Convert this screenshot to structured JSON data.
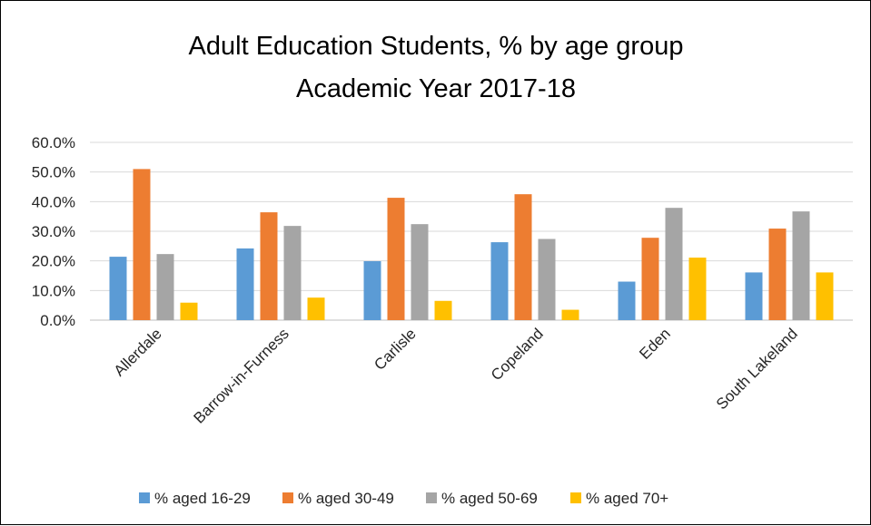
{
  "chart_data": {
    "type": "bar",
    "title": "Adult Education Students, % by age group",
    "subtitle": "Academic Year 2017-18",
    "xlabel": "",
    "ylabel": "",
    "ylim": [
      0,
      60
    ],
    "yticks": [
      "0.0%",
      "10.0%",
      "20.0%",
      "30.0%",
      "40.0%",
      "50.0%",
      "60.0%"
    ],
    "grid": true,
    "legend_position": "bottom",
    "categories": [
      "Allerdale",
      "Barrow-in-Furness",
      "Carlisle",
      "Copeland",
      "Eden",
      "South Lakeland"
    ],
    "series": [
      {
        "name": "% aged 16-29",
        "color": "#5b9bd5",
        "values": [
          21.4,
          24.2,
          19.9,
          26.3,
          13.0,
          16.1
        ]
      },
      {
        "name": "% aged 30-49",
        "color": "#ed7d31",
        "values": [
          51.0,
          36.4,
          41.3,
          42.5,
          27.8,
          30.9
        ]
      },
      {
        "name": "% aged 50-69",
        "color": "#a5a5a5",
        "values": [
          22.3,
          31.8,
          32.4,
          27.4,
          37.9,
          36.7
        ]
      },
      {
        "name": "% aged 70+",
        "color": "#ffc000",
        "values": [
          5.9,
          7.6,
          6.5,
          3.5,
          21.1,
          16.1
        ]
      }
    ]
  }
}
